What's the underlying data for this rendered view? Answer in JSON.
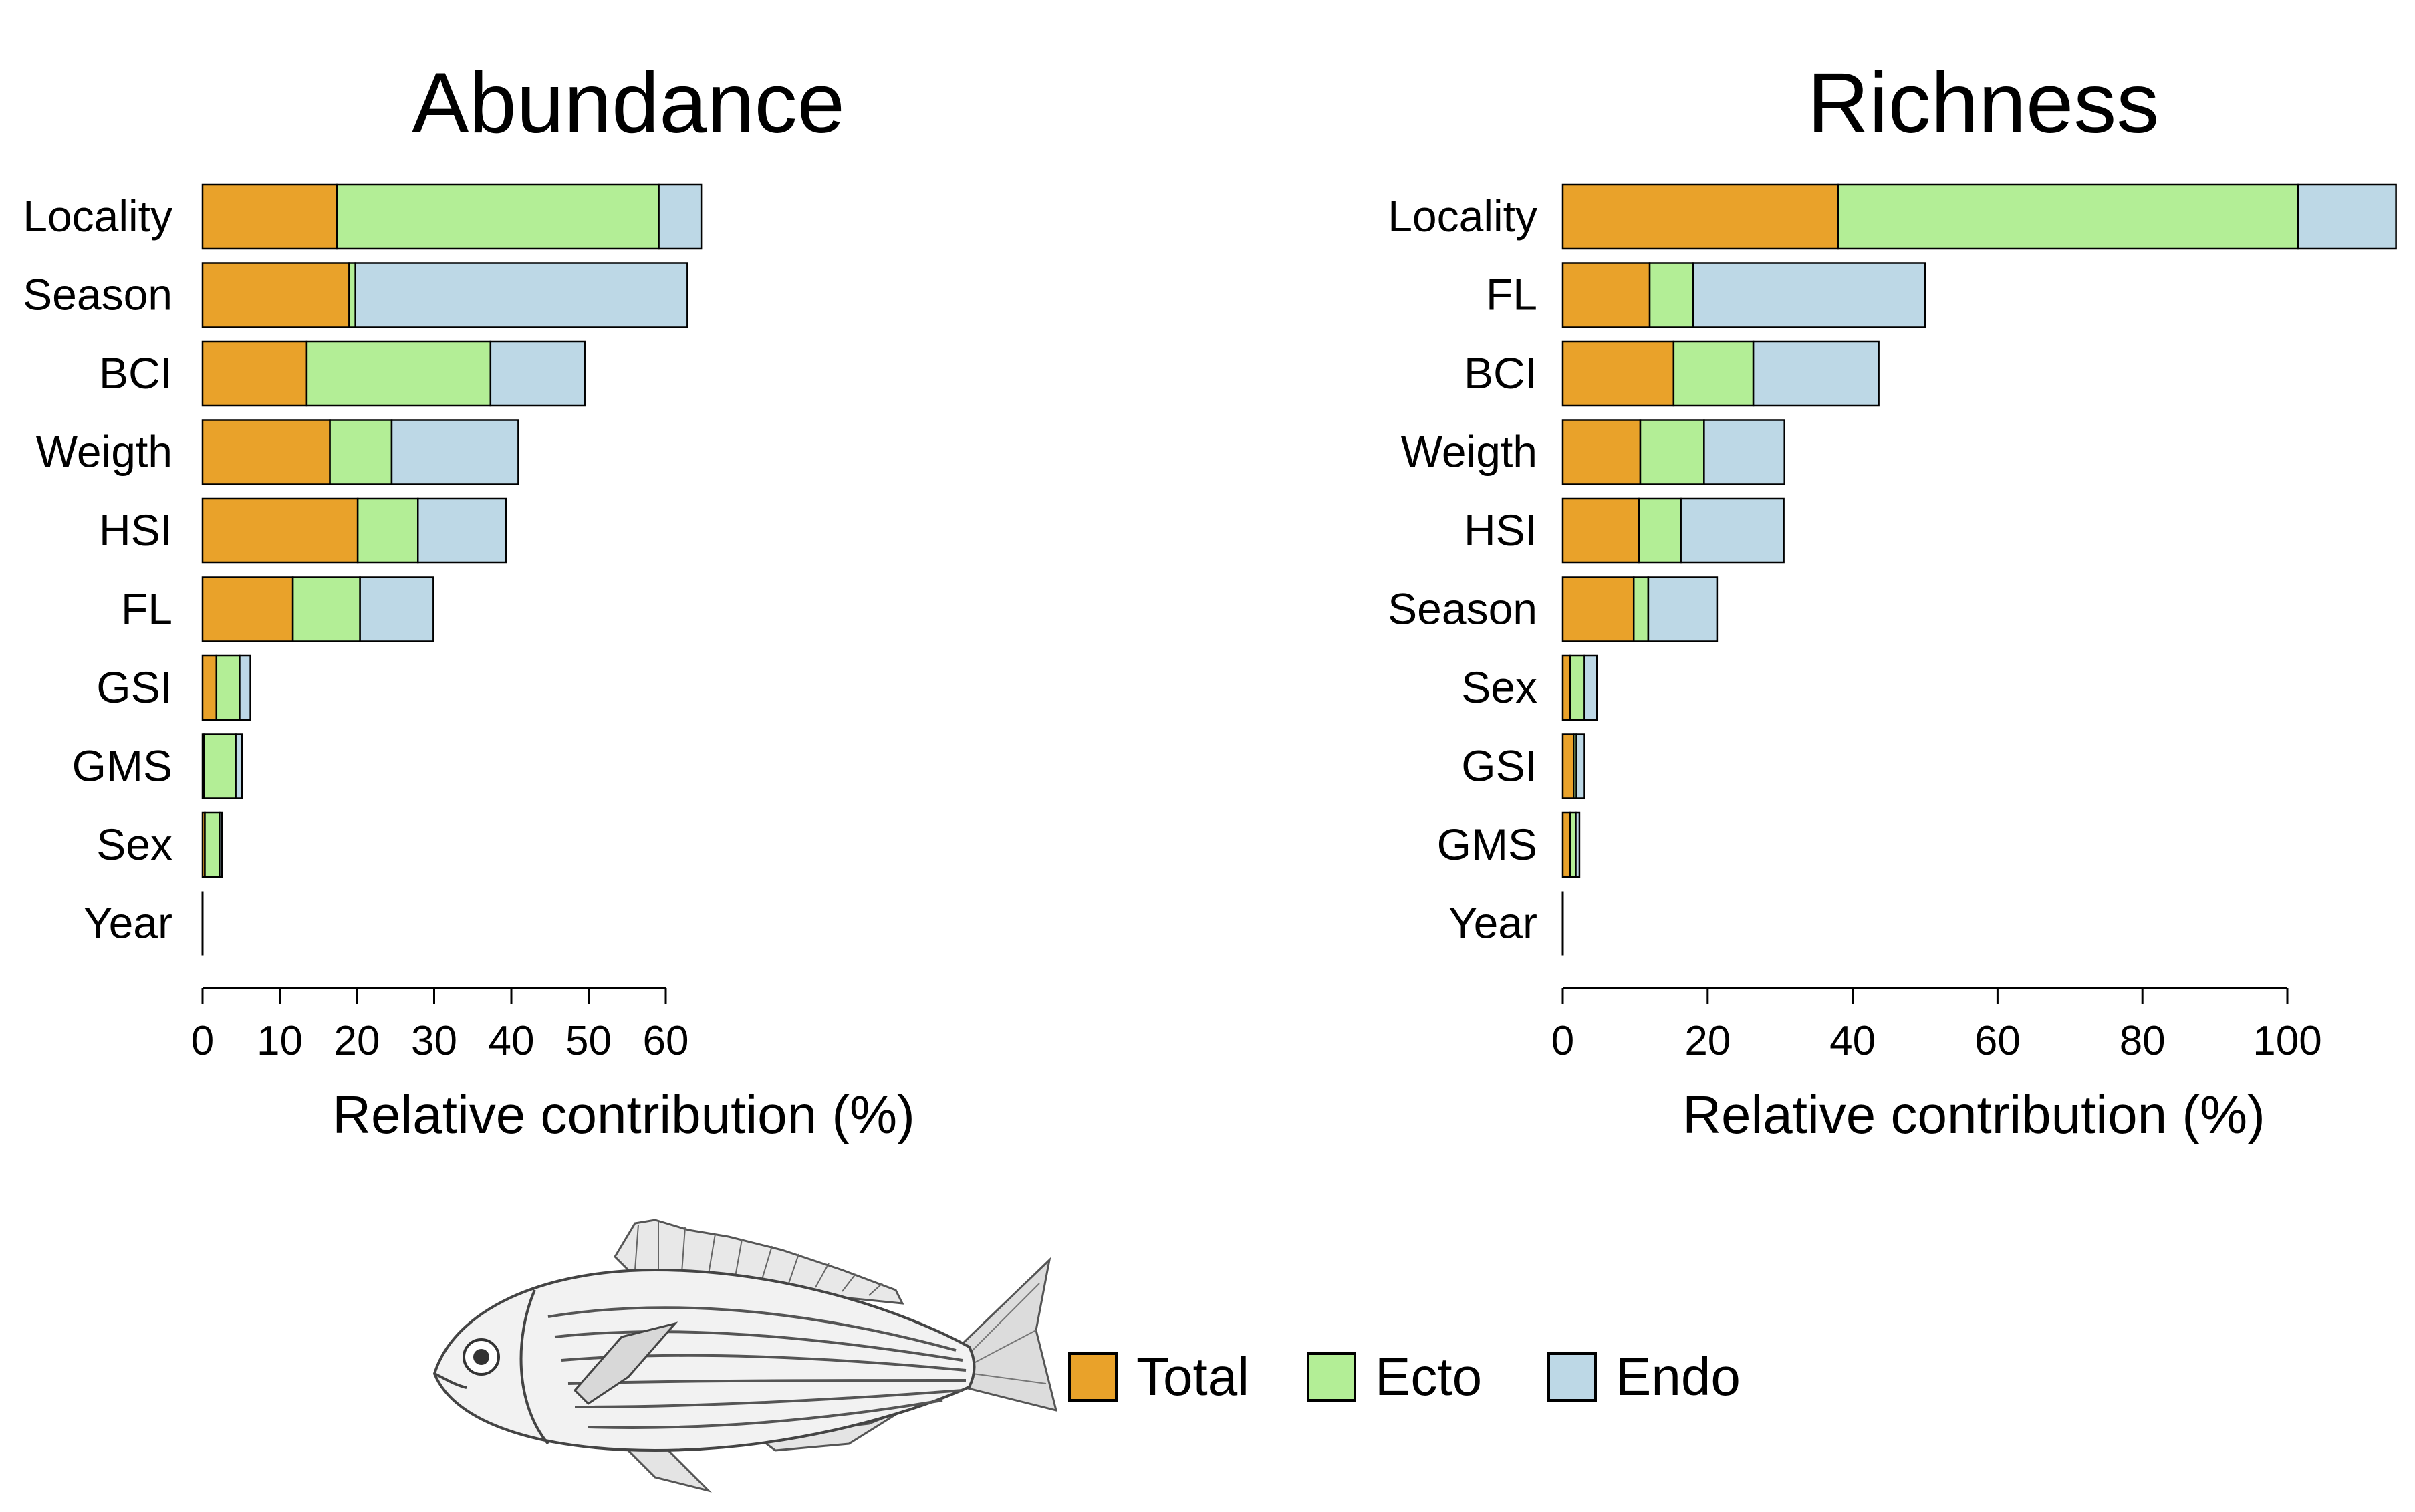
{
  "colors": {
    "Total": "#e9a22a",
    "Ecto": "#b3ee96",
    "Endo": "#bdd8e6"
  },
  "legend": {
    "items": [
      {
        "key": "Total",
        "label": "Total"
      },
      {
        "key": "Ecto",
        "label": "Ecto"
      },
      {
        "key": "Endo",
        "label": "Endo"
      }
    ]
  },
  "illustration": {
    "icon": "fish-drawing-icon"
  },
  "chart_data": [
    {
      "type": "bar",
      "orientation": "horizontal",
      "stacked": true,
      "title": "Abundance",
      "xlabel": "Relative contribution (%)",
      "ylabel": "",
      "xlim": [
        0,
        65
      ],
      "xticks": [
        0,
        10,
        20,
        30,
        40,
        50,
        60
      ],
      "categories": [
        "Locality",
        "Season",
        "BCI",
        "Weigth",
        "HSI",
        "FL",
        "GSI",
        "GMS",
        "Sex",
        "Year"
      ],
      "series": [
        {
          "name": "Total",
          "values": [
            17.4,
            19.0,
            13.5,
            16.5,
            20.1,
            11.7,
            1.8,
            0.2,
            0.3,
            0.0
          ]
        },
        {
          "name": "Ecto",
          "values": [
            41.7,
            0.8,
            23.8,
            8.0,
            7.8,
            8.7,
            3.0,
            4.1,
            1.9,
            0.0
          ]
        },
        {
          "name": "Endo",
          "values": [
            5.5,
            43.0,
            12.2,
            16.4,
            11.4,
            9.5,
            1.4,
            0.8,
            0.3,
            0.0
          ]
        }
      ]
    },
    {
      "type": "bar",
      "orientation": "horizontal",
      "stacked": true,
      "title": "Richness",
      "xlabel": "Relative contribution (%)",
      "ylabel": "",
      "xlim": [
        0,
        115
      ],
      "xticks": [
        0,
        20,
        40,
        60,
        80,
        100
      ],
      "categories": [
        "Locality",
        "FL",
        "BCI",
        "Weigth",
        "HSI",
        "Season",
        "Sex",
        "GSI",
        "GMS",
        "Year"
      ],
      "series": [
        {
          "name": "Total",
          "values": [
            38.0,
            12.0,
            15.3,
            10.7,
            10.5,
            9.8,
            1.0,
            1.5,
            1.0,
            0.0
          ]
        },
        {
          "name": "Ecto",
          "values": [
            63.5,
            6.0,
            11.0,
            8.8,
            5.8,
            2.0,
            2.0,
            0.4,
            0.8,
            0.0
          ]
        },
        {
          "name": "Endo",
          "values": [
            13.5,
            32.0,
            17.3,
            11.1,
            14.2,
            9.5,
            1.7,
            1.1,
            0.5,
            0.0
          ]
        }
      ]
    }
  ]
}
